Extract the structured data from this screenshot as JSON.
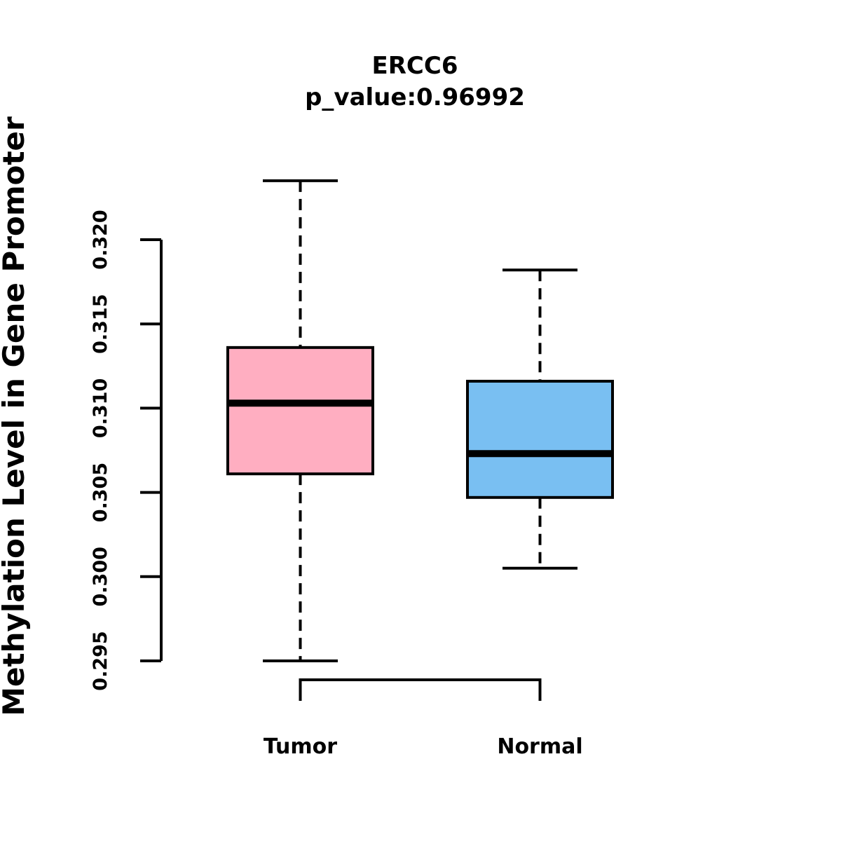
{
  "chart_data": {
    "type": "boxplot",
    "title": "ERCC6",
    "subtitle": "p_value:0.96992",
    "ylabel": "Methylation Level in Gene Promoter",
    "xlabel": "",
    "ylim": [
      0.295,
      0.3235
    ],
    "y_ticks": [
      "0.295",
      "0.300",
      "0.305",
      "0.310",
      "0.315",
      "0.320"
    ],
    "categories": [
      "Tumor",
      "Normal"
    ],
    "grid": false,
    "legend_position": "none",
    "groups": [
      {
        "label": "Tumor",
        "fill_color": "#FFAEC1",
        "whisker_low": 0.295,
        "q1": 0.3061,
        "median": 0.3103,
        "q3": 0.3136,
        "whisker_high": 0.3235
      },
      {
        "label": "Normal",
        "fill_color": "#79BFF2",
        "whisker_low": 0.3005,
        "q1": 0.3047,
        "median": 0.3073,
        "q3": 0.3116,
        "whisker_high": 0.3182
      }
    ]
  },
  "colors": {
    "line": "#000000",
    "background": "#FFFFFF",
    "tumor_box": "#FFAEC1",
    "normal_box": "#79BFF2"
  }
}
